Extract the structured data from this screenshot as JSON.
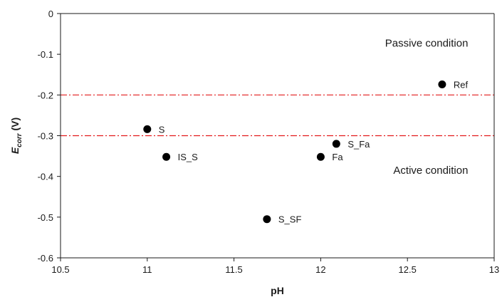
{
  "chart_data": {
    "type": "scatter",
    "title": "",
    "xlabel": "pH",
    "ylabel_main": "E",
    "ylabel_sub": "corr",
    "ylabel_unit": " (V)",
    "xlim": [
      10.5,
      13
    ],
    "ylim": [
      -0.6,
      0
    ],
    "x_ticks": [
      10.5,
      11,
      11.5,
      12,
      12.5,
      13
    ],
    "y_ticks": [
      0,
      -0.1,
      -0.2,
      -0.3,
      -0.4,
      -0.5,
      -0.6
    ],
    "x_tick_labels": [
      "10.5",
      "11",
      "11.5",
      "12",
      "12.5",
      "13"
    ],
    "y_tick_labels": [
      "0",
      "-0.1",
      "-0.2",
      "-0.3",
      "-0.4",
      "-0.5",
      "-0.6"
    ],
    "grid": false,
    "legend": "none",
    "points": [
      {
        "label": "Ref",
        "x": 12.7,
        "y": -0.174
      },
      {
        "label": "S",
        "x": 11.0,
        "y": -0.284
      },
      {
        "label": "IS_S",
        "x": 11.11,
        "y": -0.352
      },
      {
        "label": "S_Fa",
        "x": 12.09,
        "y": -0.32
      },
      {
        "label": "Fa",
        "x": 12.0,
        "y": -0.352
      },
      {
        "label": "S_SF",
        "x": 11.69,
        "y": -0.505
      }
    ],
    "reference_lines": [
      {
        "y": -0.2,
        "style": "dash-dot",
        "color": "#e31a1c"
      },
      {
        "y": -0.3,
        "style": "dash-dot",
        "color": "#e31a1c"
      }
    ],
    "annotations": [
      {
        "text": "Passive condition",
        "x": 12.85,
        "y": -0.073
      },
      {
        "text": "Active condition",
        "x": 12.85,
        "y": -0.385
      }
    ],
    "colors": {
      "marker": "#000000",
      "axis": "#1a1a1a",
      "reference_line": "#e31a1c"
    }
  }
}
